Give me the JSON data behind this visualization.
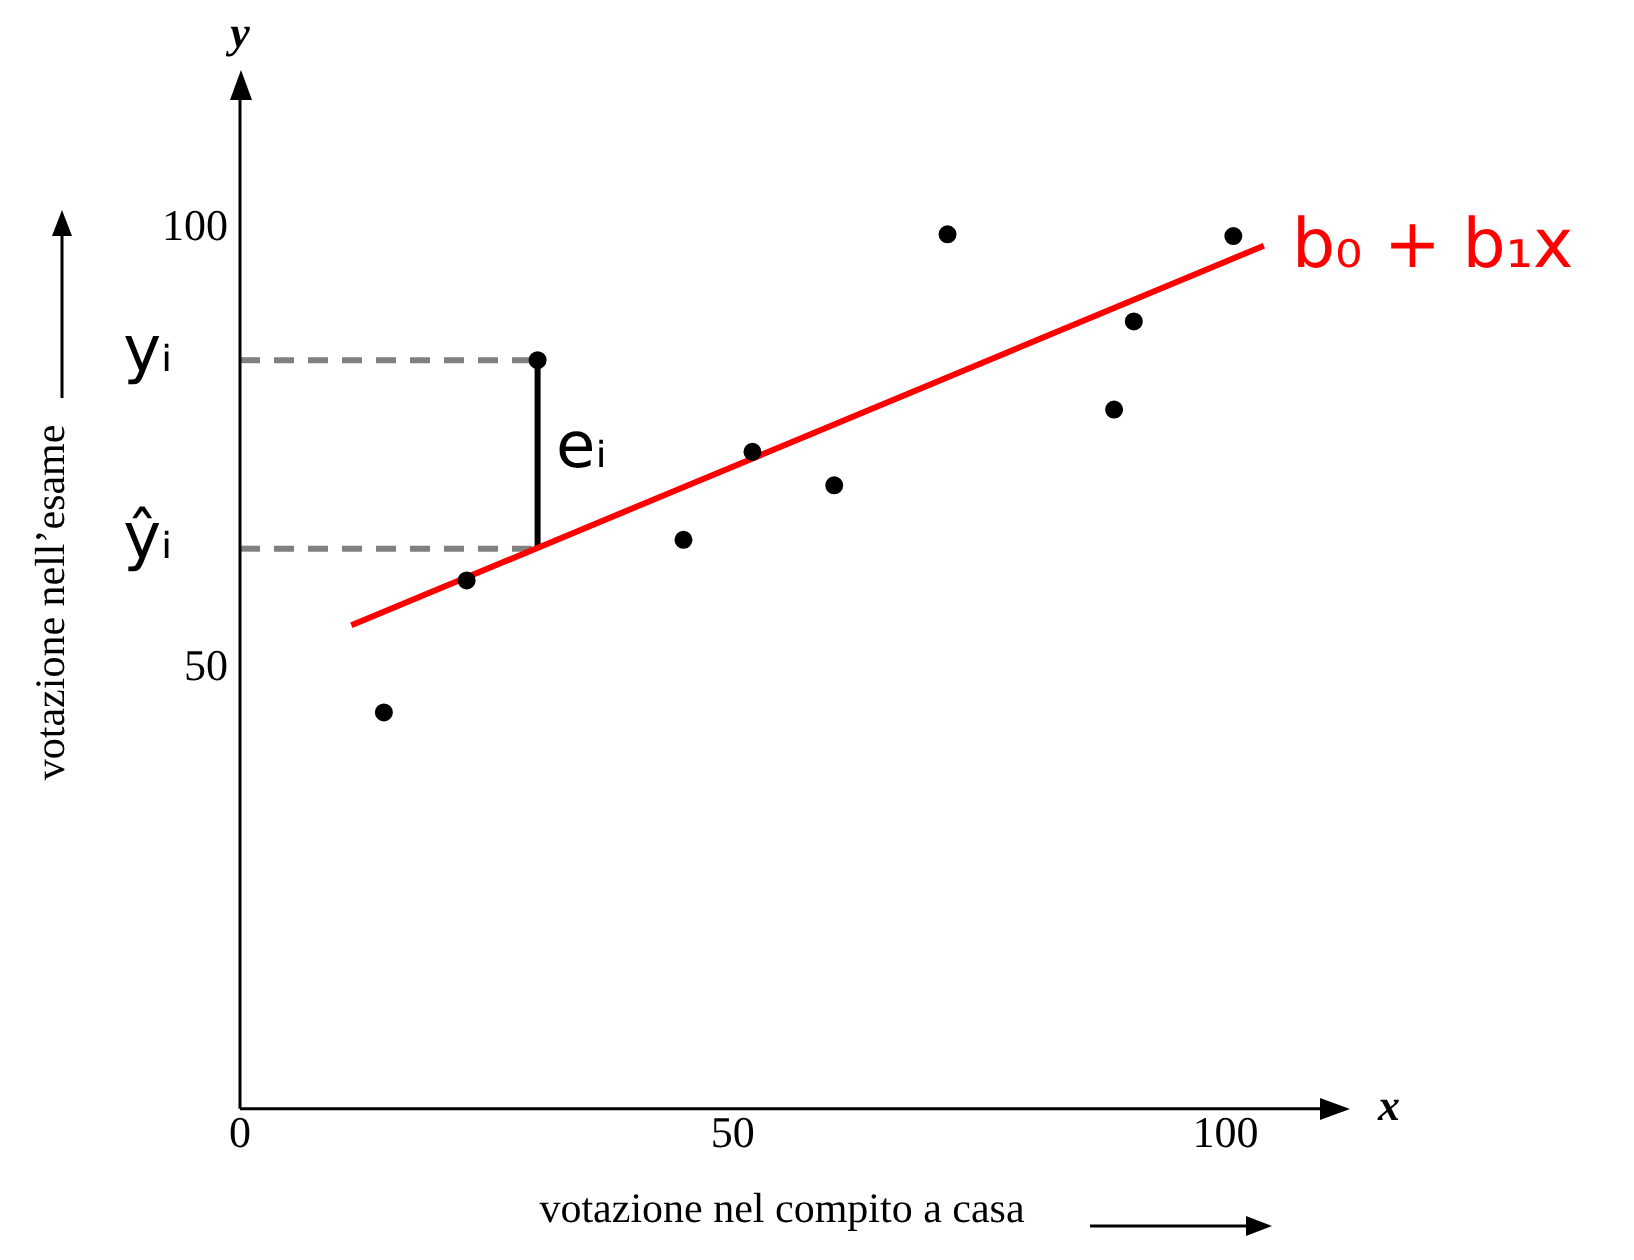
{
  "chart_data": {
    "type": "scatter",
    "xlabel": "votazione nel compito a casa",
    "ylabel": "votazione nell’esame",
    "xlim": [
      0,
      110
    ],
    "ylim": [
      0,
      115
    ],
    "xticks": [
      0,
      50,
      100
    ],
    "yticks": [
      50,
      100
    ],
    "grid": false,
    "legend": false,
    "marker": "circle",
    "series": [
      {
        "color": "#000000",
        "x": [
          14.6,
          23,
          30.2,
          45,
          52,
          60.3,
          71.8,
          88.7,
          90.7,
          100.8
        ],
        "values": [
          45,
          60,
          85,
          64.6,
          74.6,
          70.8,
          99.3,
          79.4,
          89.4,
          99.1
        ]
      },
      {
        "type": "line",
        "name": "b₀ + b₁x",
        "color": "#ff0000",
        "marker": "none",
        "x": [
          11.3,
          103.9
        ],
        "values": [
          54.9,
          98
        ]
      },
      {
        "type": "line",
        "color": "#808080",
        "marker": "none",
        "line_style": "dashed",
        "x": [
          0,
          30.2
        ],
        "values": [
          85,
          85
        ]
      },
      {
        "type": "line",
        "color": "#808080",
        "marker": "none",
        "line_style": "dashed",
        "x": [
          0,
          30.2
        ],
        "values": [
          63.6,
          63.6
        ]
      },
      {
        "type": "line",
        "color": "#000000",
        "marker": "none",
        "x": [
          30.2,
          30.2
        ],
        "values": [
          63.6,
          85
        ]
      }
    ],
    "annotations": [
      "yᵢ",
      "ŷᵢ",
      "eᵢ",
      "y",
      "x"
    ]
  }
}
